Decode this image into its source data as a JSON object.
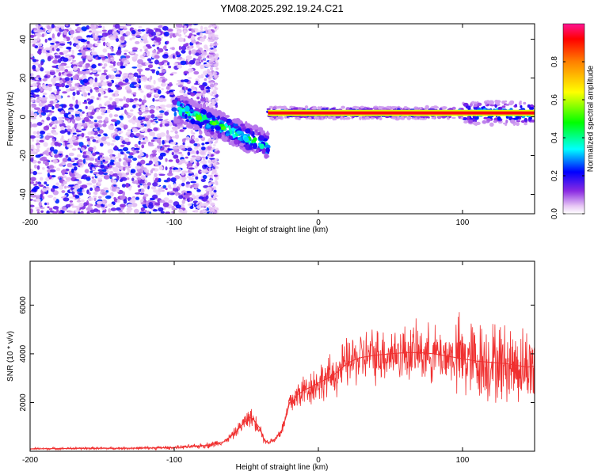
{
  "chart_data": [
    {
      "type": "heatmap",
      "title": "YM08.2025.292.19.24.C21",
      "xlabel": "Height of straight line (km)",
      "ylabel": "Frequency (Hz)",
      "xlim": [
        -200,
        150
      ],
      "ylim": [
        -50,
        48
      ],
      "xticks": [
        -200,
        -100,
        0,
        100
      ],
      "yticks": [
        -40,
        -20,
        0,
        20,
        40
      ],
      "colorbar": {
        "label": "Normalized spectral amplitude",
        "range": [
          0,
          1
        ],
        "ticks": [
          "0.0",
          "0.2",
          "0.4",
          "0.6",
          "0.8"
        ]
      },
      "features": [
        {
          "name": "broadband-noise",
          "x_range": [
            -200,
            -70
          ],
          "y_range": [
            -50,
            48
          ],
          "peak_amplitude": 0.25
        },
        {
          "name": "descending-branch",
          "x_start": -100,
          "x_end": -35,
          "y_start": 5,
          "y_end": -15,
          "peak_amplitude": 0.55
        },
        {
          "name": "steady-line",
          "x_range": [
            -35,
            150
          ],
          "frequency_hz": 2,
          "peak_amplitude": 1.0
        }
      ]
    },
    {
      "type": "line",
      "xlabel": "Height of straight line (km)",
      "ylabel": "SNR (10 * v/v)",
      "xlim": [
        -200,
        150
      ],
      "ylim": [
        0,
        7800
      ],
      "xticks": [
        -200,
        -100,
        0,
        100
      ],
      "yticks": [
        2000,
        4000,
        6000
      ],
      "series": [
        {
          "name": "SNR",
          "color": "#f03030",
          "x": [
            -200,
            -180,
            -160,
            -140,
            -120,
            -100,
            -85,
            -75,
            -65,
            -58,
            -52,
            -48,
            -45,
            -40,
            -38,
            -35,
            -30,
            -25,
            -22,
            -20,
            -17,
            -15,
            -10,
            -5,
            0,
            5,
            10,
            15,
            20,
            25,
            30,
            40,
            50,
            60,
            70,
            80,
            90,
            100,
            110,
            120,
            130,
            140,
            145,
            150
          ],
          "values": [
            100,
            110,
            120,
            120,
            130,
            150,
            200,
            260,
            400,
            750,
            1150,
            1400,
            1300,
            900,
            500,
            350,
            500,
            900,
            1500,
            2000,
            2100,
            2300,
            2500,
            2650,
            2800,
            2950,
            3100,
            3350,
            3600,
            3750,
            3850,
            3950,
            4000,
            4050,
            4050,
            4000,
            3900,
            3800,
            3700,
            3650,
            3600,
            3500,
            3450,
            3500
          ]
        }
      ]
    }
  ]
}
